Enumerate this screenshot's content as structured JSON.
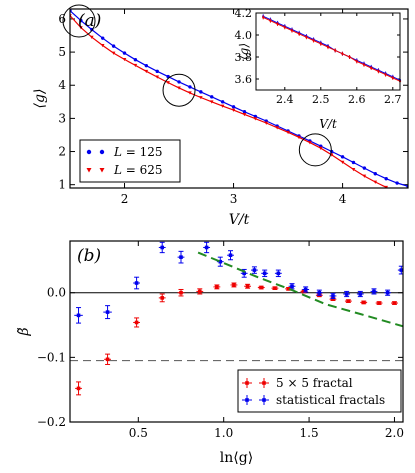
{
  "chart_data": [
    {
      "panel": "(a)",
      "type": "line",
      "xlabel": "V/t",
      "ylabel": "⟨g⟩",
      "xlim": [
        1.5,
        4.6
      ],
      "ylim": [
        0.9,
        6.3
      ],
      "xticks": [
        "2",
        "3",
        "4"
      ],
      "yticks": [
        "1",
        "2",
        "3",
        "4",
        "5",
        "6"
      ],
      "legend": {
        "placement": "bottom-left",
        "entries": [
          "L = 125",
          "L = 625"
        ],
        "entries_italic_var": [
          "L",
          "L"
        ],
        "entries_rest": [
          " = 125",
          " = 625"
        ]
      },
      "series": [
        {
          "name": "L = 125",
          "color": "#0000ee",
          "marker": "dot",
          "x": [
            1.5,
            1.6,
            1.7,
            1.8,
            1.9,
            2.0,
            2.1,
            2.2,
            2.3,
            2.4,
            2.5,
            2.6,
            2.7,
            2.8,
            2.9,
            3.0,
            3.1,
            3.2,
            3.3,
            3.4,
            3.5,
            3.6,
            3.7,
            3.8,
            3.9,
            4.0,
            4.1,
            4.2,
            4.3,
            4.4,
            4.5,
            4.6
          ],
          "y": [
            6.25,
            5.95,
            5.68,
            5.42,
            5.18,
            4.97,
            4.77,
            4.59,
            4.42,
            4.26,
            4.1,
            3.95,
            3.8,
            3.65,
            3.5,
            3.35,
            3.2,
            3.06,
            2.92,
            2.77,
            2.62,
            2.47,
            2.32,
            2.16,
            2.0,
            1.84,
            1.67,
            1.5,
            1.33,
            1.18,
            1.05,
            0.95
          ]
        },
        {
          "name": "L = 625",
          "color": "#ee0000",
          "marker": "triangle-down",
          "x": [
            1.5,
            1.6,
            1.7,
            1.8,
            1.9,
            2.0,
            2.1,
            2.2,
            2.3,
            2.4,
            2.5,
            2.6,
            2.7,
            2.8,
            2.9,
            3.0,
            3.1,
            3.2,
            3.3,
            3.4,
            3.5,
            3.6,
            3.7,
            3.8,
            3.9,
            4.0,
            4.1,
            4.2,
            4.3,
            4.4,
            4.5
          ],
          "y": [
            6.1,
            5.74,
            5.45,
            5.2,
            4.97,
            4.78,
            4.6,
            4.42,
            4.25,
            4.08,
            3.92,
            3.77,
            3.63,
            3.5,
            3.37,
            3.25,
            3.12,
            2.99,
            2.86,
            2.72,
            2.58,
            2.43,
            2.27,
            2.1,
            1.9,
            1.68,
            1.46,
            1.26,
            1.08,
            0.92,
            0.75
          ]
        }
      ],
      "circles_at": [
        [
          2.5,
          3.85
        ],
        [
          3.75,
          2.05
        ]
      ]
    },
    {
      "panel": "inset",
      "type": "line",
      "xlabel": "V/t",
      "ylabel": "⟨g⟩",
      "xlim": [
        2.32,
        2.72
      ],
      "ylim": [
        3.5,
        4.2
      ],
      "xticks": [
        "2.4",
        "2.5",
        "2.6",
        "2.7"
      ],
      "yticks": [
        "3.6",
        "3.8",
        "4.0",
        "4.2"
      ],
      "series": [
        {
          "name": "L = 125",
          "color": "#0000ee",
          "x": [
            2.34,
            2.36,
            2.38,
            2.4,
            2.42,
            2.44,
            2.46,
            2.48,
            2.5,
            2.52,
            2.54,
            2.56,
            2.58,
            2.6,
            2.62,
            2.64,
            2.66,
            2.68,
            2.7,
            2.72
          ],
          "y": [
            4.17,
            4.14,
            4.11,
            4.08,
            4.05,
            4.02,
            3.99,
            3.96,
            3.93,
            3.9,
            3.86,
            3.83,
            3.8,
            3.77,
            3.74,
            3.71,
            3.68,
            3.65,
            3.62,
            3.59
          ]
        },
        {
          "name": "L = 625",
          "color": "#ee0000",
          "x": [
            2.34,
            2.36,
            2.38,
            2.4,
            2.42,
            2.44,
            2.46,
            2.48,
            2.5,
            2.52,
            2.54,
            2.56,
            2.58,
            2.6,
            2.62,
            2.64,
            2.66,
            2.68,
            2.7,
            2.72
          ],
          "y": [
            4.16,
            4.13,
            4.1,
            4.07,
            4.04,
            4.01,
            3.98,
            3.95,
            3.92,
            3.89,
            3.86,
            3.83,
            3.8,
            3.76,
            3.73,
            3.7,
            3.67,
            3.64,
            3.61,
            3.58
          ]
        }
      ]
    },
    {
      "panel": "(b)",
      "type": "scatter",
      "xlabel": "ln⟨g⟩",
      "ylabel": "β̃",
      "xlim": [
        0.1,
        2.05
      ],
      "ylim": [
        -0.2,
        0.08
      ],
      "xticks": [
        "0.5",
        "1.0",
        "1.5",
        "2.0"
      ],
      "yticks": [
        "0.0",
        "−0.1",
        "−0.2"
      ],
      "hlines": [
        0.0,
        -0.105
      ],
      "legend": {
        "placement": "bottom-right",
        "entries": [
          "5 × 5 fractal",
          "statistical fractals"
        ]
      },
      "series": [
        {
          "name": "5 × 5 fractal",
          "color": "#ee0000",
          "x": [
            0.15,
            0.32,
            0.49,
            0.64,
            0.75,
            0.86,
            0.96,
            1.06,
            1.14,
            1.22,
            1.3,
            1.38,
            1.47,
            1.56,
            1.64,
            1.73,
            1.82,
            1.91,
            2.0
          ],
          "y": [
            -0.148,
            -0.103,
            -0.046,
            -0.008,
            0.0,
            0.002,
            0.009,
            0.012,
            0.01,
            0.008,
            0.007,
            0.006,
            0.002,
            -0.004,
            -0.01,
            -0.013,
            -0.015,
            -0.016,
            -0.016
          ],
          "xerr": [
            0.02,
            0.02,
            0.02,
            0.02,
            0.02,
            0.02,
            0.02,
            0.02,
            0.02,
            0.02,
            0.02,
            0.02,
            0.02,
            0.02,
            0.02,
            0.02,
            0.02,
            0.02,
            0.02
          ],
          "yerr": [
            0.01,
            0.008,
            0.007,
            0.006,
            0.005,
            0.004,
            0.003,
            0.003,
            0.003,
            0.002,
            0.002,
            0.002,
            0.002,
            0.002,
            0.002,
            0.002,
            0.002,
            0.002,
            0.002
          ]
        },
        {
          "name": "statistical fractals",
          "color": "#0000ee",
          "x": [
            0.15,
            0.32,
            0.49,
            0.64,
            0.75,
            0.9,
            0.98,
            1.04,
            1.12,
            1.18,
            1.24,
            1.32,
            1.4,
            1.48,
            1.56,
            1.64,
            1.72,
            1.8,
            1.88,
            1.96,
            2.04
          ],
          "y": [
            -0.035,
            -0.03,
            0.015,
            0.07,
            0.055,
            0.07,
            0.048,
            0.058,
            0.03,
            0.035,
            0.03,
            0.03,
            0.01,
            0.005,
            0.0,
            -0.005,
            -0.002,
            -0.002,
            0.002,
            0.0,
            0.035
          ],
          "xerr": [
            0.025,
            0.025,
            0.02,
            0.02,
            0.02,
            0.02,
            0.02,
            0.02,
            0.02,
            0.02,
            0.02,
            0.02,
            0.02,
            0.02,
            0.02,
            0.02,
            0.02,
            0.02,
            0.02,
            0.02,
            0.02
          ],
          "yerr": [
            0.012,
            0.01,
            0.009,
            0.008,
            0.009,
            0.008,
            0.007,
            0.007,
            0.006,
            0.005,
            0.005,
            0.005,
            0.004,
            0.004,
            0.004,
            0.004,
            0.004,
            0.004,
            0.004,
            0.004,
            0.006
          ]
        },
        {
          "name": "fit",
          "color": "#228b22",
          "style": "dashed",
          "x": [
            0.85,
            1.0,
            1.2,
            1.4,
            1.6,
            1.8,
            2.05
          ],
          "y": [
            0.062,
            0.046,
            0.024,
            0.004,
            -0.018,
            -0.033,
            -0.052
          ]
        }
      ]
    }
  ]
}
